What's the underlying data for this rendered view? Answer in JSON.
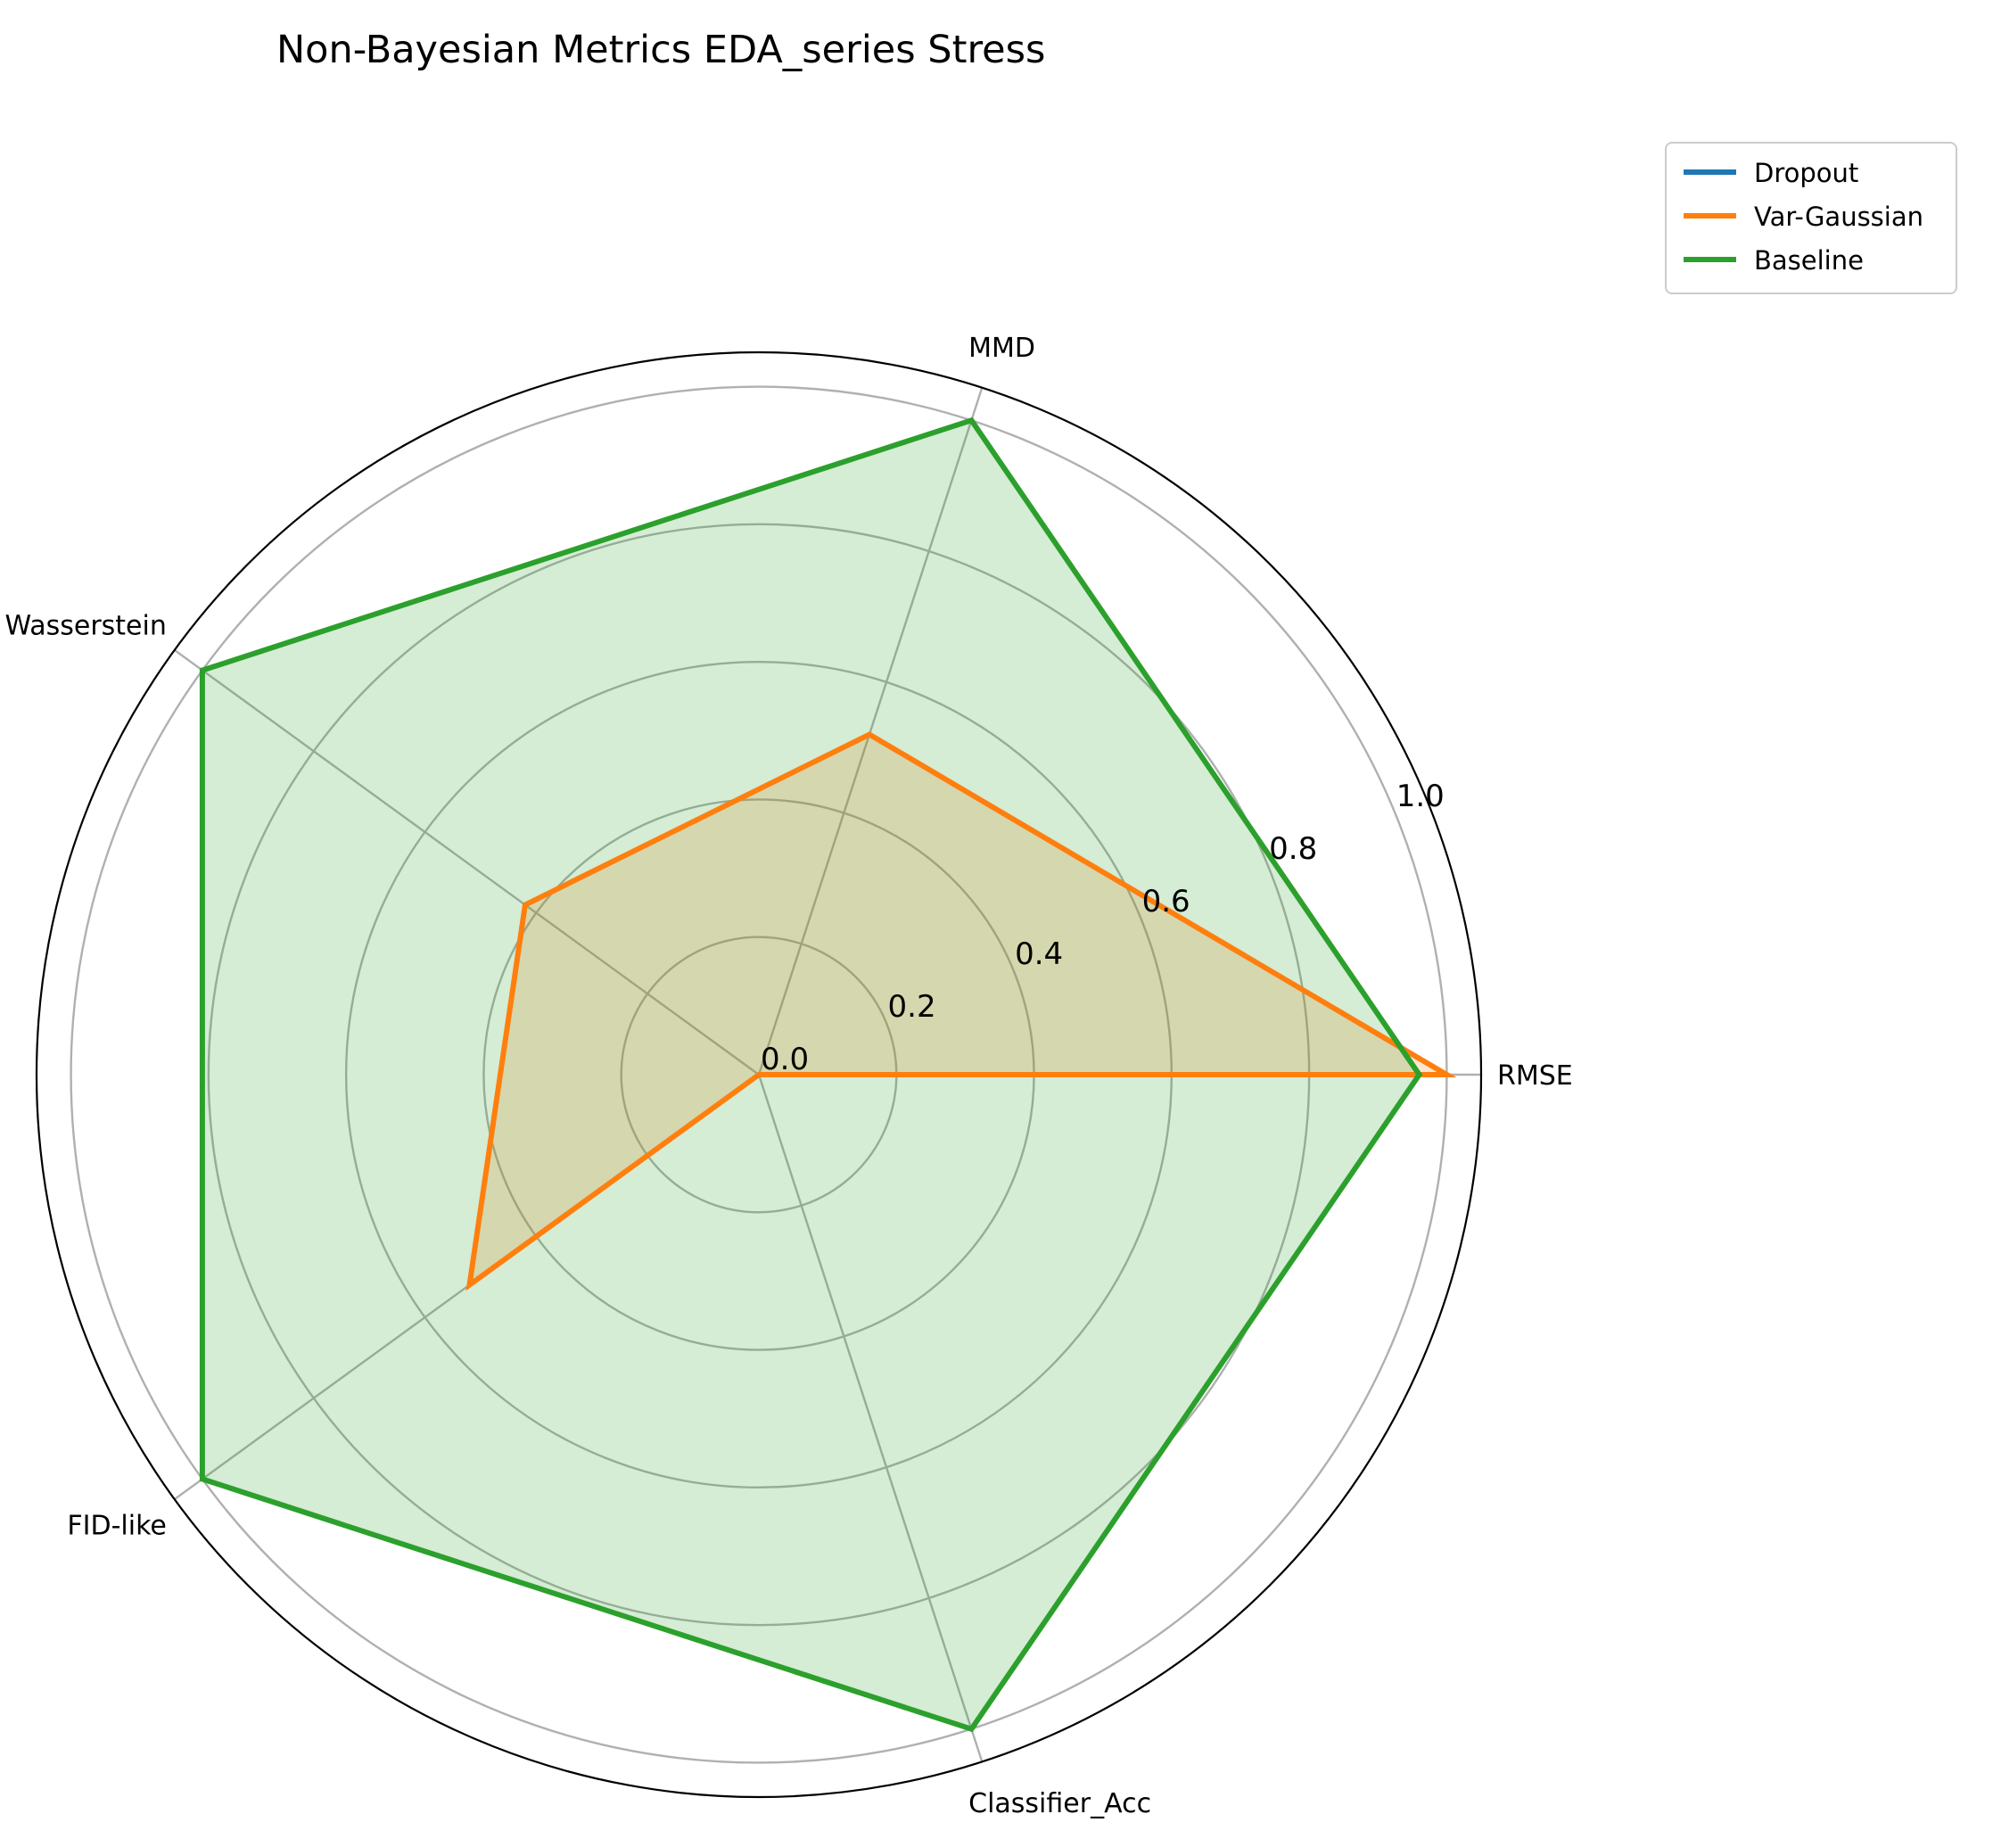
{
  "chart_data": {
    "type": "radar",
    "title": "Non-Bayesian Metrics EDA_series Stress",
    "axes": [
      "RMSE",
      "MMD",
      "Wasserstein",
      "FID-like",
      "Classifier_Acc"
    ],
    "rlim": [
      0,
      1.05
    ],
    "r_ticks": [
      "0.0",
      "0.2",
      "0.4",
      "0.6",
      "0.8",
      "1.0"
    ],
    "r_tick_values": [
      0.0,
      0.2,
      0.4,
      0.6,
      0.8,
      1.0
    ],
    "grid": true,
    "legend_position": "upper-right-outside",
    "series": [
      {
        "name": "Dropout",
        "color": "#1f77b4",
        "values": [
          0,
          0,
          0,
          0,
          0
        ]
      },
      {
        "name": "Var-Gaussian",
        "color": "#ff7f0e",
        "values": [
          1.0,
          0.52,
          0.42,
          0.52,
          0.0
        ]
      },
      {
        "name": "Baseline",
        "color": "#2ca02c",
        "values": [
          0.96,
          1.0,
          1.0,
          1.0,
          1.0
        ]
      }
    ]
  }
}
